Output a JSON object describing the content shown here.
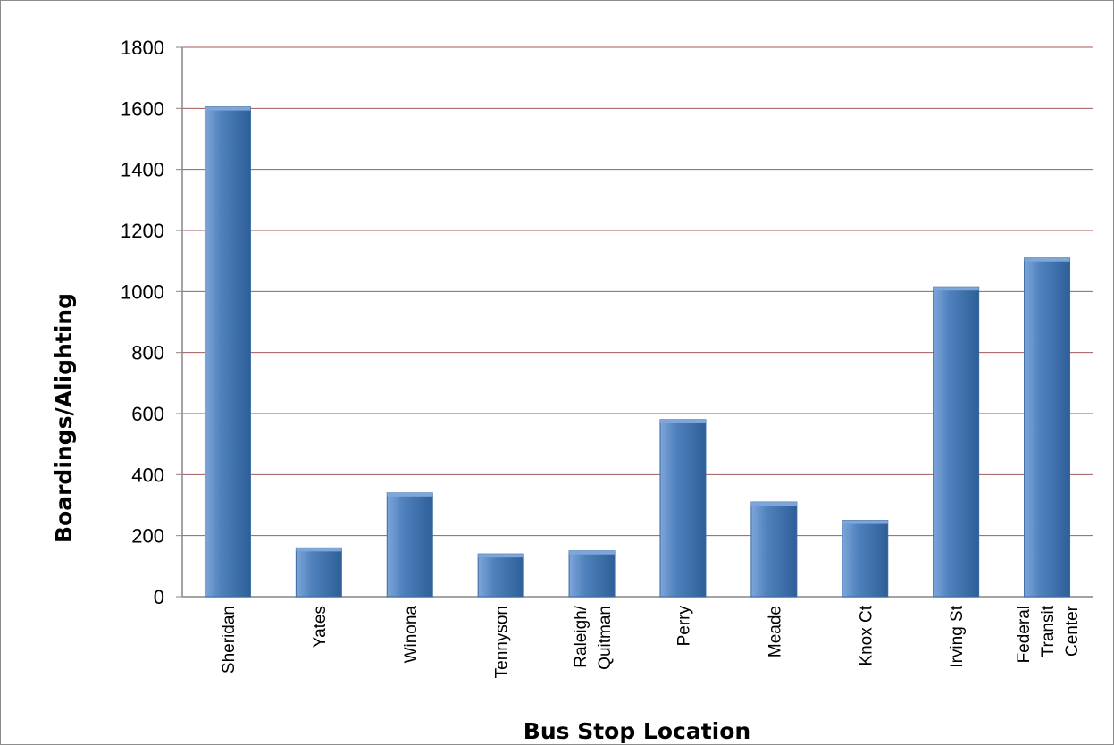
{
  "chart_data": {
    "type": "bar",
    "title": "",
    "xlabel": "Bus Stop Location",
    "ylabel": "Boardings/Alighting",
    "ylim": [
      0,
      1800
    ],
    "yticks": [
      0,
      200,
      400,
      600,
      800,
      1000,
      1200,
      1400,
      1600,
      1800
    ],
    "grid": true,
    "legend": "none",
    "categories": [
      [
        "Sheridan"
      ],
      [
        "Yates"
      ],
      [
        "Winona"
      ],
      [
        "Tennyson"
      ],
      [
        "Raleigh/",
        "Quitman"
      ],
      [
        "Perry"
      ],
      [
        "Meade"
      ],
      [
        "Knox Ct"
      ],
      [
        "Irving St"
      ],
      [
        "Federal",
        "Transit",
        "Center"
      ]
    ],
    "values": [
      1605,
      160,
      340,
      140,
      150,
      580,
      310,
      250,
      1015,
      1110
    ],
    "colors": {
      "bar": "#4f81bd",
      "bar_light": "#7ea6d9",
      "bar_dark": "#2f5f98",
      "gridline": "#a05a5a",
      "axis": "#868686"
    }
  }
}
